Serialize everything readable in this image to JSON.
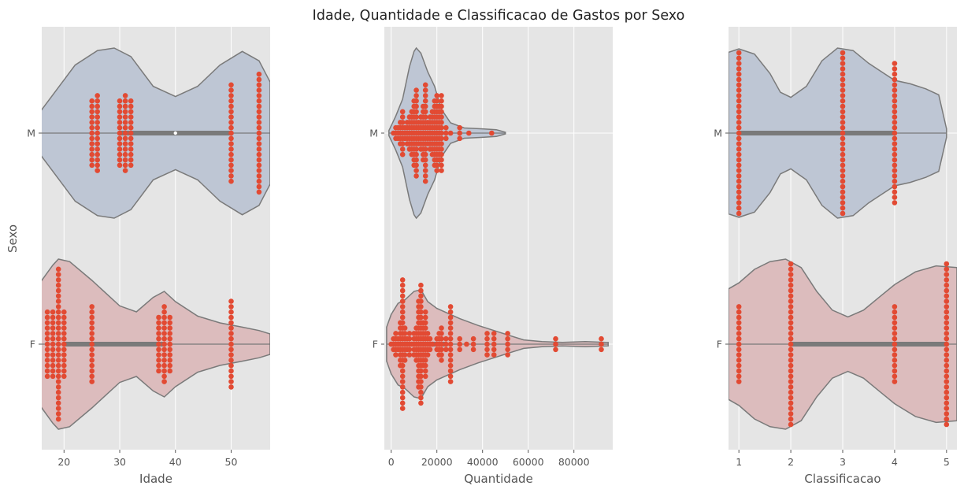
{
  "title": "Idade, Quantidade e Classificacao de Gastos por Sexo",
  "ylabel": "Sexo",
  "categories": [
    "M",
    "F"
  ],
  "colors": {
    "panel_bg": "#e5e5e5",
    "grid": "#ffffff",
    "violin_M": "#bec6d4",
    "violin_F": "#dcbcbd",
    "violin_edge": "#7a7a7a",
    "box": "#7a7a7a",
    "points": "#e24a33",
    "text": "#555555",
    "title": "#222222"
  },
  "chart_data": [
    {
      "type": "violin-swarm",
      "xlabel": "Idade",
      "xlim": [
        16,
        57
      ],
      "xticks": [
        20,
        30,
        40,
        50
      ],
      "tick_labels": [
        "20",
        "30",
        "40",
        "50"
      ],
      "groups": {
        "M": {
          "median": 40,
          "q1": 30,
          "q3": 50,
          "violin": [
            [
              14,
              0.1
            ],
            [
              18,
              0.45
            ],
            [
              22,
              0.8
            ],
            [
              26,
              0.97
            ],
            [
              29,
              1.0
            ],
            [
              32,
              0.9
            ],
            [
              36,
              0.55
            ],
            [
              40,
              0.43
            ],
            [
              44,
              0.55
            ],
            [
              48,
              0.8
            ],
            [
              52,
              0.96
            ],
            [
              55,
              0.85
            ],
            [
              57,
              0.6
            ]
          ],
          "points": [
            [
              25,
              13
            ],
            [
              26,
              15
            ],
            [
              30,
              13
            ],
            [
              31,
              15
            ],
            [
              32,
              13
            ],
            [
              50,
              19
            ],
            [
              55,
              23
            ]
          ]
        },
        "F": {
          "median": 25,
          "q1": 20,
          "q3": 38,
          "violin": [
            [
              14,
              0.55
            ],
            [
              16,
              0.75
            ],
            [
              18,
              0.93
            ],
            [
              19,
              1.0
            ],
            [
              21,
              0.97
            ],
            [
              25,
              0.75
            ],
            [
              30,
              0.45
            ],
            [
              33,
              0.38
            ],
            [
              36,
              0.55
            ],
            [
              38,
              0.62
            ],
            [
              40,
              0.5
            ],
            [
              44,
              0.33
            ],
            [
              48,
              0.25
            ],
            [
              52,
              0.2
            ],
            [
              55,
              0.16
            ],
            [
              57,
              0.12
            ]
          ],
          "points": [
            [
              17,
              13
            ],
            [
              18,
              13
            ],
            [
              19,
              29
            ],
            [
              20,
              13
            ],
            [
              25,
              15
            ],
            [
              37,
              11
            ],
            [
              38,
              15
            ],
            [
              39,
              11
            ],
            [
              50,
              17
            ]
          ]
        }
      }
    },
    {
      "type": "violin-swarm",
      "xlabel": "Quantidade",
      "xlim": [
        -3000,
        97000
      ],
      "xticks": [
        0,
        20000,
        40000,
        60000,
        80000
      ],
      "tick_labels": [
        "0",
        "20000",
        "40000",
        "60000",
        "80000"
      ],
      "groups": {
        "M": {
          "median": 12000,
          "q1": 8000,
          "q3": 18000,
          "violin": [
            [
              -1000,
              0.03
            ],
            [
              2000,
              0.2
            ],
            [
              5000,
              0.4
            ],
            [
              8000,
              0.78
            ],
            [
              10000,
              0.96
            ],
            [
              11000,
              1.0
            ],
            [
              13000,
              0.94
            ],
            [
              16000,
              0.72
            ],
            [
              19000,
              0.55
            ],
            [
              22000,
              0.28
            ],
            [
              26000,
              0.12
            ],
            [
              32000,
              0.06
            ],
            [
              40000,
              0.05
            ],
            [
              46000,
              0.04
            ],
            [
              50000,
              0.01
            ]
          ],
          "points": [
            [
              1000,
              1
            ],
            [
              2000,
              3
            ],
            [
              3000,
              3
            ],
            [
              4000,
              5
            ],
            [
              5000,
              9
            ],
            [
              6000,
              3
            ],
            [
              7000,
              5
            ],
            [
              8000,
              7
            ],
            [
              9000,
              9
            ],
            [
              10000,
              13
            ],
            [
              11000,
              17
            ],
            [
              12000,
              5
            ],
            [
              13000,
              7
            ],
            [
              14000,
              11
            ],
            [
              15000,
              19
            ],
            [
              16000,
              5
            ],
            [
              17000,
              7
            ],
            [
              18000,
              9
            ],
            [
              19000,
              13
            ],
            [
              20000,
              15
            ],
            [
              21000,
              11
            ],
            [
              22000,
              15
            ],
            [
              24000,
              3
            ],
            [
              26000,
              1
            ],
            [
              30000,
              3
            ],
            [
              34000,
              1
            ],
            [
              44000,
              1
            ]
          ]
        },
        "F": {
          "median": 13000,
          "q1": 6000,
          "q3": 24000,
          "violin": [
            [
              -2000,
              0.2
            ],
            [
              0,
              0.35
            ],
            [
              3000,
              0.48
            ],
            [
              6000,
              0.52
            ],
            [
              10000,
              0.62
            ],
            [
              13000,
              0.64
            ],
            [
              16000,
              0.5
            ],
            [
              20000,
              0.42
            ],
            [
              25000,
              0.36
            ],
            [
              30000,
              0.3
            ],
            [
              38000,
              0.22
            ],
            [
              45000,
              0.16
            ],
            [
              52000,
              0.1
            ],
            [
              58000,
              0.05
            ],
            [
              66000,
              0.03
            ],
            [
              75000,
              0.02
            ],
            [
              85000,
              0.03
            ],
            [
              95000,
              0.02
            ]
          ],
          "points": [
            [
              0,
              1
            ],
            [
              1000,
              3
            ],
            [
              2000,
              5
            ],
            [
              3000,
              3
            ],
            [
              4000,
              9
            ],
            [
              5000,
              25
            ],
            [
              6000,
              7
            ],
            [
              7000,
              3
            ],
            [
              8000,
              5
            ],
            [
              9000,
              1
            ],
            [
              10000,
              5
            ],
            [
              11000,
              7
            ],
            [
              12000,
              17
            ],
            [
              13000,
              23
            ],
            [
              14000,
              9
            ],
            [
              15000,
              13
            ],
            [
              16000,
              5
            ],
            [
              17000,
              3
            ],
            [
              18000,
              1
            ],
            [
              20000,
              3
            ],
            [
              21000,
              5
            ],
            [
              22000,
              7
            ],
            [
              24000,
              3
            ],
            [
              26000,
              15
            ],
            [
              30000,
              3
            ],
            [
              33000,
              1
            ],
            [
              36000,
              3
            ],
            [
              42000,
              5
            ],
            [
              45000,
              5
            ],
            [
              51000,
              5
            ],
            [
              72000,
              3
            ],
            [
              92000,
              3
            ]
          ]
        }
      }
    },
    {
      "type": "violin-swarm",
      "xlabel": "Classificacao",
      "xlim": [
        0.8,
        5.2
      ],
      "xticks": [
        1,
        2,
        3,
        4,
        5
      ],
      "tick_labels": [
        "1",
        "2",
        "3",
        "4",
        "5"
      ],
      "groups": {
        "M": {
          "median": 3,
          "q1": 1,
          "q3": 4,
          "violin": [
            [
              0.8,
              0.95
            ],
            [
              1.0,
              0.99
            ],
            [
              1.3,
              0.93
            ],
            [
              1.6,
              0.7
            ],
            [
              1.8,
              0.48
            ],
            [
              2.0,
              0.42
            ],
            [
              2.3,
              0.55
            ],
            [
              2.6,
              0.85
            ],
            [
              2.9,
              1.0
            ],
            [
              3.2,
              0.97
            ],
            [
              3.5,
              0.82
            ],
            [
              3.8,
              0.7
            ],
            [
              4.0,
              0.62
            ],
            [
              4.3,
              0.58
            ],
            [
              4.6,
              0.52
            ],
            [
              4.85,
              0.45
            ],
            [
              5.0,
              0.05
            ]
          ],
          "points": [
            [
              1,
              31
            ],
            [
              3,
              31
            ],
            [
              4,
              27
            ]
          ]
        },
        "F": {
          "median": 4,
          "q1": 2,
          "q3": 5,
          "violin": [
            [
              0.8,
              0.65
            ],
            [
              1.0,
              0.72
            ],
            [
              1.3,
              0.88
            ],
            [
              1.6,
              0.97
            ],
            [
              1.9,
              1.0
            ],
            [
              2.2,
              0.9
            ],
            [
              2.5,
              0.62
            ],
            [
              2.8,
              0.4
            ],
            [
              3.1,
              0.32
            ],
            [
              3.4,
              0.4
            ],
            [
              3.7,
              0.55
            ],
            [
              4.0,
              0.7
            ],
            [
              4.4,
              0.85
            ],
            [
              4.8,
              0.92
            ],
            [
              5.2,
              0.9
            ]
          ],
          "points": [
            [
              1,
              15
            ],
            [
              2,
              31
            ],
            [
              4,
              15
            ],
            [
              5,
              31
            ]
          ]
        }
      }
    }
  ]
}
